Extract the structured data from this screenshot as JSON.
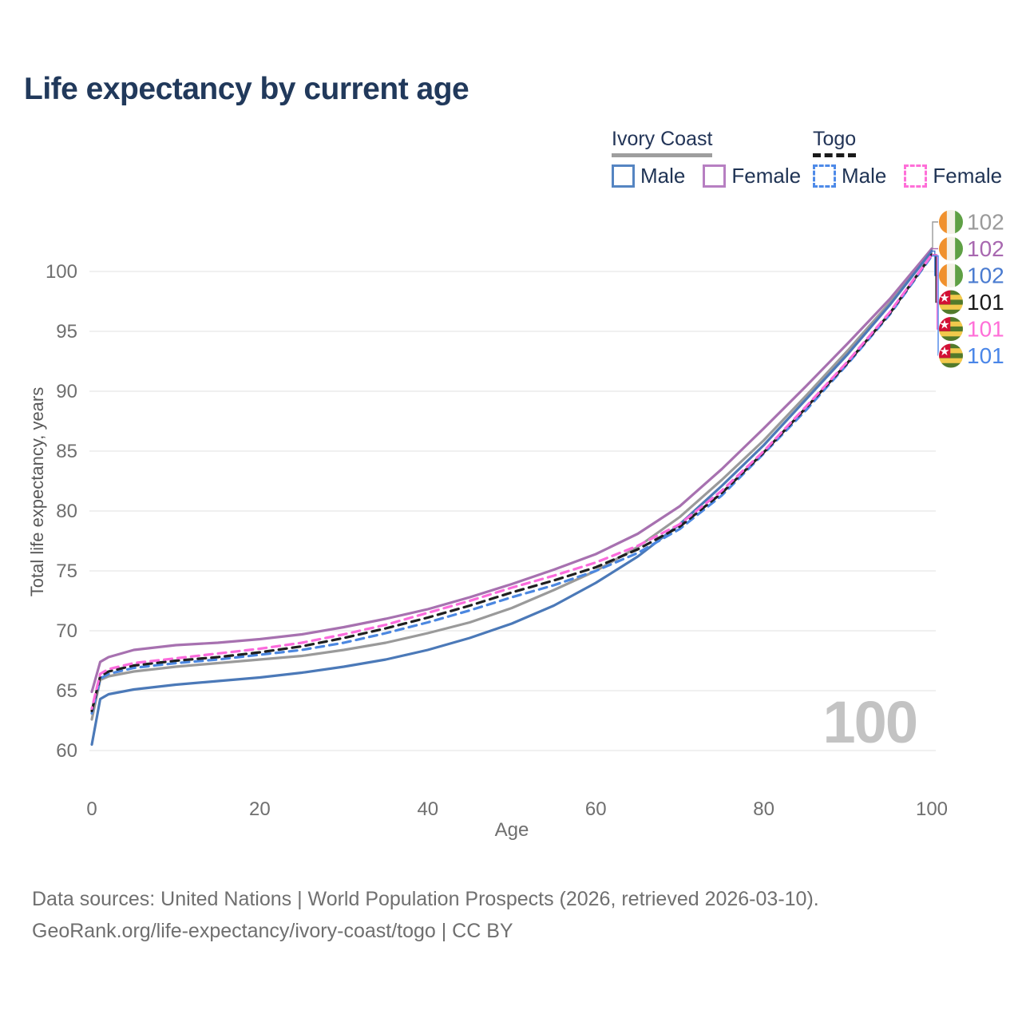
{
  "title": "Life expectancy by current age",
  "legend": {
    "groups": [
      {
        "title": "Ivory Coast",
        "line_style": "solid",
        "line_color": "#9e9e9e",
        "items": [
          {
            "label": "Male",
            "style": "solid",
            "color": "#5585c2"
          },
          {
            "label": "Female",
            "style": "solid",
            "color": "#b77fc2"
          }
        ]
      },
      {
        "title": "Togo",
        "line_style": "dashed",
        "line_color": "#1a1a1a",
        "items": [
          {
            "label": "Male",
            "style": "dashed",
            "color": "#4e8ae8"
          },
          {
            "label": "Female",
            "style": "dashed",
            "color": "#ff6fd8"
          }
        ]
      }
    ]
  },
  "chart_data": {
    "type": "line",
    "title": "Life expectancy by current age",
    "xlabel": "Age",
    "ylabel": "Total life expectancy, years",
    "xlim": [
      0,
      100
    ],
    "ylim": [
      60,
      104
    ],
    "xticks": [
      0,
      20,
      40,
      60,
      80,
      100
    ],
    "yticks": [
      60,
      65,
      70,
      75,
      80,
      85,
      90,
      95,
      100
    ],
    "grid": "horizontal",
    "legend_position": "top-right",
    "watermark": "100",
    "x": [
      0,
      1,
      2,
      5,
      10,
      15,
      20,
      25,
      30,
      35,
      40,
      45,
      50,
      55,
      60,
      65,
      70,
      75,
      80,
      85,
      90,
      95,
      100
    ],
    "series": [
      {
        "name": "Ivory Coast Total",
        "country": "Ivory Coast",
        "dash": "solid",
        "color": "#9a9a9a",
        "values": [
          62.6,
          65.9,
          66.2,
          66.6,
          67.0,
          67.3,
          67.6,
          67.9,
          68.4,
          69.0,
          69.8,
          70.7,
          71.9,
          73.4,
          75.0,
          77.0,
          79.5,
          82.6,
          85.9,
          89.6,
          93.4,
          97.4,
          101.9
        ]
      },
      {
        "name": "Ivory Coast Female",
        "country": "Ivory Coast",
        "dash": "solid",
        "color": "#a771b0",
        "values": [
          64.9,
          67.4,
          67.8,
          68.4,
          68.8,
          69.0,
          69.3,
          69.7,
          70.3,
          71.0,
          71.8,
          72.8,
          73.9,
          75.1,
          76.4,
          78.1,
          80.4,
          83.5,
          86.9,
          90.4,
          94.0,
          97.7,
          101.9
        ]
      },
      {
        "name": "Ivory Coast Male",
        "country": "Ivory Coast",
        "dash": "solid",
        "color": "#4b79b8",
        "values": [
          60.5,
          64.3,
          64.7,
          65.1,
          65.5,
          65.8,
          66.1,
          66.5,
          67.0,
          67.6,
          68.4,
          69.4,
          70.6,
          72.1,
          74.0,
          76.2,
          78.9,
          82.1,
          85.5,
          89.3,
          93.1,
          97.2,
          101.7
        ]
      },
      {
        "name": "Togo Total",
        "country": "Togo",
        "dash": "dashed",
        "color": "#1f1f1f",
        "values": [
          63.3,
          66.2,
          66.6,
          67.1,
          67.5,
          67.8,
          68.2,
          68.7,
          69.4,
          70.2,
          71.1,
          72.1,
          73.2,
          74.2,
          75.3,
          76.8,
          78.7,
          81.5,
          84.9,
          88.6,
          92.4,
          96.5,
          101.4
        ]
      },
      {
        "name": "Togo Female",
        "country": "Togo",
        "dash": "dashed",
        "color": "#fb6bdc",
        "values": [
          63.5,
          66.4,
          66.8,
          67.3,
          67.7,
          68.1,
          68.5,
          69.0,
          69.7,
          70.5,
          71.5,
          72.5,
          73.6,
          74.6,
          75.7,
          77.1,
          78.9,
          81.7,
          85.0,
          88.7,
          92.5,
          96.6,
          101.4
        ]
      },
      {
        "name": "Togo Male",
        "country": "Togo",
        "dash": "dashed",
        "color": "#4b87e0",
        "values": [
          63.1,
          66.0,
          66.4,
          66.9,
          67.3,
          67.6,
          68.0,
          68.4,
          69.0,
          69.8,
          70.7,
          71.7,
          72.8,
          73.8,
          75.0,
          76.5,
          78.5,
          81.3,
          84.8,
          88.4,
          92.3,
          96.4,
          101.3
        ]
      }
    ],
    "end_labels": [
      {
        "text": "102",
        "color": "#9a9a9a",
        "flag": "ivory-coast",
        "series_index": 0
      },
      {
        "text": "102",
        "color": "#a868b0",
        "flag": "ivory-coast",
        "series_index": 1
      },
      {
        "text": "102",
        "color": "#4a7bd0",
        "flag": "ivory-coast",
        "series_index": 2
      },
      {
        "text": "101",
        "color": "#1a1a1a",
        "flag": "togo",
        "series_index": 3
      },
      {
        "text": "101",
        "color": "#ff6fd8",
        "flag": "togo",
        "series_index": 4
      },
      {
        "text": "101",
        "color": "#4a86e8",
        "flag": "togo",
        "series_index": 5
      }
    ]
  },
  "footer": {
    "line1": "Data sources: United Nations | World Population Prospects (2026, retrieved 2026-03-10).",
    "line2": "GeoRank.org/life-expectancy/ivory-coast/togo | CC BY"
  }
}
